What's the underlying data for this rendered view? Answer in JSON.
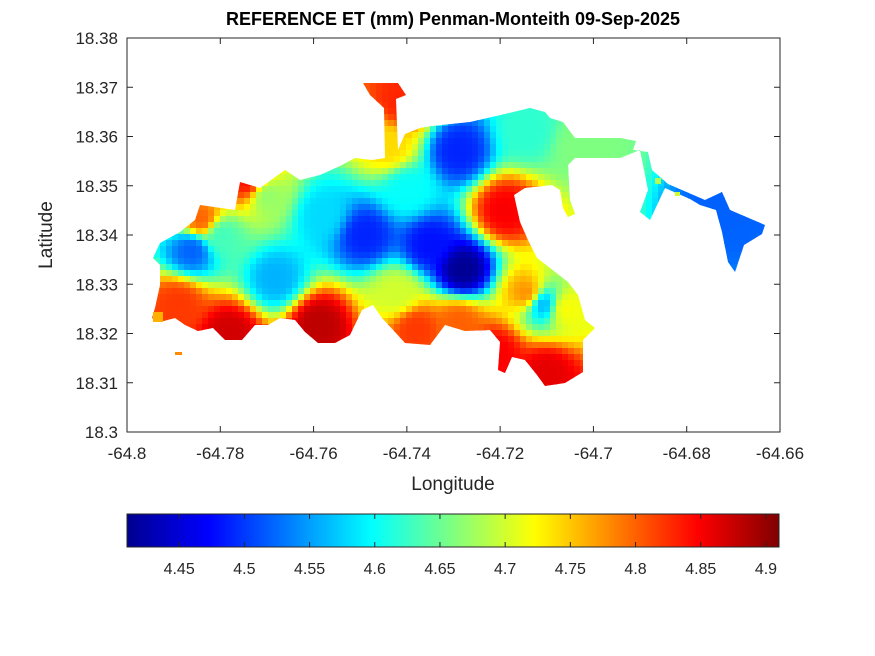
{
  "chart_data": {
    "type": "heatmap",
    "title": "REFERENCE ET (mm) Penman-Monteith 09-Sep-2025",
    "xlabel": "Longitude",
    "ylabel": "Latitude",
    "xlim": [
      -64.8,
      -64.66
    ],
    "ylim": [
      18.3,
      18.38
    ],
    "x_ticks": [
      "-64.8",
      "-64.78",
      "-64.76",
      "-64.74",
      "-64.72",
      "-64.7",
      "-64.68",
      "-64.66"
    ],
    "y_ticks": [
      "18.3",
      "18.31",
      "18.32",
      "18.33",
      "18.34",
      "18.35",
      "18.36",
      "18.37",
      "18.38"
    ],
    "colormap": "jet",
    "colorbar": {
      "location": "bottom",
      "range": [
        4.41,
        4.91
      ],
      "ticks": [
        "4.45",
        "4.5",
        "4.55",
        "4.6",
        "4.65",
        "4.7",
        "4.75",
        "4.8",
        "4.85",
        "4.9"
      ]
    },
    "grid": false,
    "value_centers": [
      {
        "lon": -64.728,
        "lat": 18.333,
        "value": 4.42
      },
      {
        "lon": -64.735,
        "lat": 18.338,
        "value": 4.48
      },
      {
        "lon": -64.749,
        "lat": 18.34,
        "value": 4.49
      },
      {
        "lon": -64.729,
        "lat": 18.357,
        "value": 4.49
      },
      {
        "lon": -64.786,
        "lat": 18.337,
        "value": 4.52
      },
      {
        "lon": -64.672,
        "lat": 18.345,
        "value": 4.52
      },
      {
        "lon": -64.768,
        "lat": 18.331,
        "value": 4.56
      },
      {
        "lon": -64.711,
        "lat": 18.326,
        "value": 4.56
      },
      {
        "lon": -64.74,
        "lat": 18.349,
        "value": 4.6
      },
      {
        "lon": -64.758,
        "lat": 18.344,
        "value": 4.58
      },
      {
        "lon": -64.78,
        "lat": 18.34,
        "value": 4.63
      },
      {
        "lon": -64.714,
        "lat": 18.361,
        "value": 4.62
      },
      {
        "lon": -64.77,
        "lat": 18.348,
        "value": 4.67
      },
      {
        "lon": -64.703,
        "lat": 18.358,
        "value": 4.66
      },
      {
        "lon": -64.742,
        "lat": 18.328,
        "value": 4.7
      },
      {
        "lon": -64.744,
        "lat": 18.358,
        "value": 4.74
      },
      {
        "lon": -64.784,
        "lat": 18.343,
        "value": 4.8
      },
      {
        "lon": -64.789,
        "lat": 18.326,
        "value": 4.82
      },
      {
        "lon": -64.778,
        "lat": 18.32,
        "value": 4.87
      },
      {
        "lon": -64.759,
        "lat": 18.322,
        "value": 4.88
      },
      {
        "lon": -64.774,
        "lat": 18.351,
        "value": 4.84
      },
      {
        "lon": -64.741,
        "lat": 18.367,
        "value": 4.83
      },
      {
        "lon": -64.738,
        "lat": 18.321,
        "value": 4.82
      },
      {
        "lon": -64.729,
        "lat": 18.322,
        "value": 4.8
      },
      {
        "lon": -64.719,
        "lat": 18.345,
        "value": 4.85
      },
      {
        "lon": -64.721,
        "lat": 18.316,
        "value": 4.85
      },
      {
        "lon": -64.71,
        "lat": 18.312,
        "value": 4.86
      },
      {
        "lon": -64.714,
        "lat": 18.328,
        "value": 4.78
      },
      {
        "lon": -64.706,
        "lat": 18.325,
        "value": 4.72
      }
    ]
  }
}
